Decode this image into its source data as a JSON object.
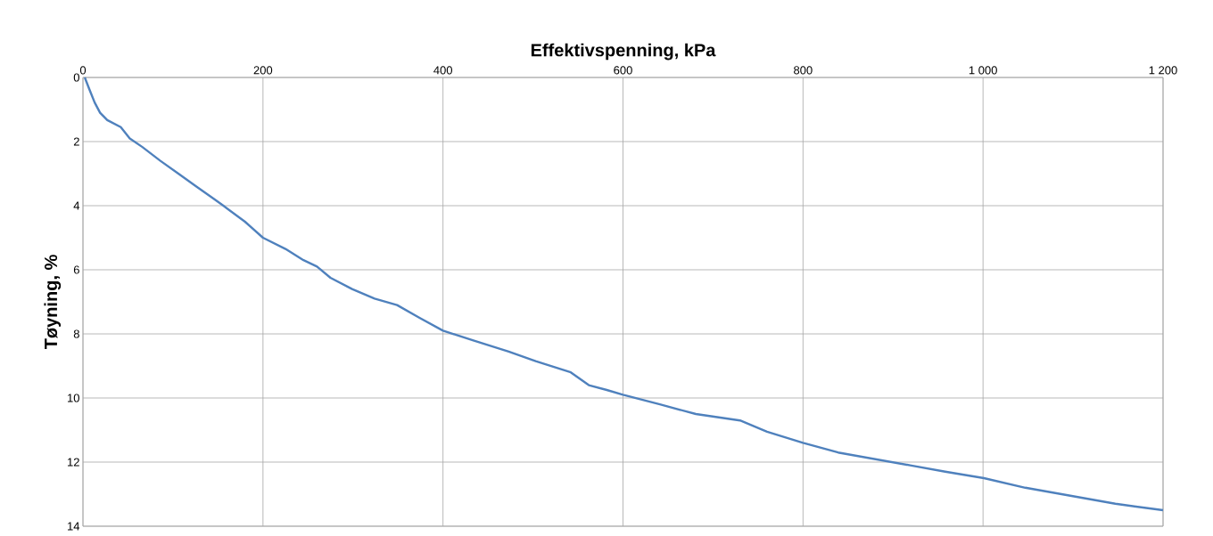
{
  "chart_data": {
    "type": "line",
    "xlabel": "Effektivspenning, kPa",
    "ylabel": "Tøyning, %",
    "xlim": [
      0,
      1200
    ],
    "ylim": [
      14,
      0
    ],
    "xticks": [
      0,
      200,
      400,
      600,
      800,
      {
        "value": 1000,
        "label": "1 000"
      },
      {
        "value": 1200,
        "label": "1 200"
      }
    ],
    "yticks": [
      0,
      2,
      4,
      6,
      8,
      10,
      12,
      14
    ],
    "grid": true,
    "marker": "none",
    "line_style": "solid",
    "series": [
      {
        "color": "#4f81bd",
        "x": [
          2,
          7,
          13,
          19,
          27,
          42,
          52,
          66,
          86,
          106,
          126,
          146,
          156,
          180,
          200,
          225,
          245,
          260,
          275,
          299,
          324,
          349,
          374,
          400,
          433,
          473,
          503,
          542,
          552,
          562,
          582,
          600,
          641,
          681,
          730,
          760,
          800,
          839,
          879,
          919,
          958,
          1001,
          1047,
          1097,
          1147,
          1200
        ],
        "values": [
          0,
          0.36,
          0.78,
          1.1,
          1.33,
          1.55,
          1.9,
          2.17,
          2.6,
          3.0,
          3.4,
          3.8,
          4.0,
          4.5,
          5.0,
          5.35,
          5.7,
          5.9,
          6.25,
          6.6,
          6.9,
          7.1,
          7.5,
          7.9,
          8.2,
          8.55,
          8.85,
          9.2,
          9.4,
          9.6,
          9.75,
          9.9,
          10.2,
          10.5,
          10.7,
          11.05,
          11.4,
          11.7,
          11.9,
          12.1,
          12.3,
          12.5,
          12.8,
          13.05,
          13.3,
          13.5
        ]
      }
    ]
  }
}
